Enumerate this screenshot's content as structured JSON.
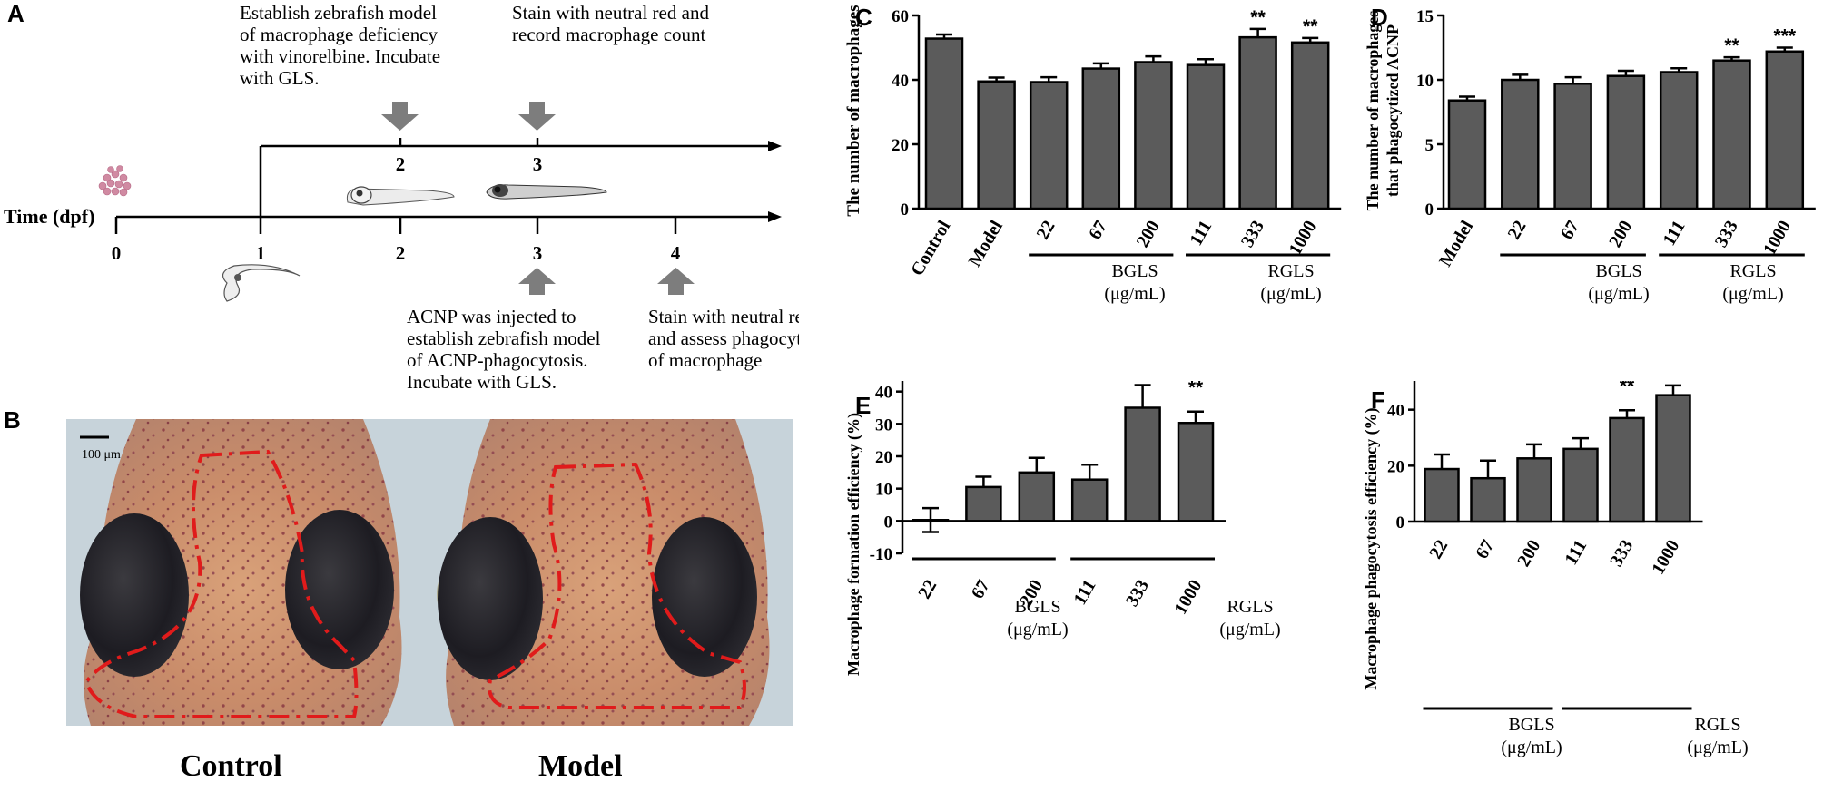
{
  "panels": {
    "A": "A",
    "B": "B",
    "C": "C",
    "D": "D",
    "E": "E",
    "F": "F"
  },
  "timeline": {
    "axis_label": "Time (dpf)",
    "ticks": [
      "0",
      "1",
      "2",
      "3",
      "4"
    ],
    "upper_ticks": [
      "2",
      "3"
    ],
    "top_notes": [
      [
        "Establish zebrafish model",
        "of macrophage deficiency",
        "with vinorelbine. Incubate",
        "with GLS."
      ],
      [
        "Stain with neutral red and",
        "record macrophage count"
      ]
    ],
    "bottom_notes": [
      [
        "ACNP was injected to",
        "establish zebrafish model",
        "of ACNP-phagocytosis.",
        "Incubate with GLS."
      ],
      [
        "Stain with neutral red",
        "and assess phagocytosis",
        "of macrophage"
      ]
    ]
  },
  "photos": {
    "scale_bar_label": "100 μm",
    "left_caption": "Control",
    "right_caption": "Model"
  },
  "groups": {
    "bgls_label": "BGLS",
    "rgls_label": "RGLS",
    "unit": "(μg/mL)"
  },
  "chart_data": [
    {
      "panel": "C",
      "type": "bar",
      "categories": [
        "Control",
        "Model",
        "22",
        "67",
        "200",
        "111",
        "333",
        "1000"
      ],
      "values": [
        52.8,
        39.5,
        39.3,
        43.5,
        45.5,
        44.6,
        53.2,
        51.6
      ],
      "errors": [
        1.3,
        1.2,
        1.5,
        1.6,
        1.8,
        1.8,
        2.6,
        1.4
      ],
      "significance": [
        "",
        "",
        "",
        "",
        "",
        "",
        "**",
        "**"
      ],
      "ylabel": "The number of macrophages",
      "ylim": [
        0,
        60
      ],
      "yticks": [
        0,
        20,
        40,
        60
      ],
      "bar_color": "#5b5b5b"
    },
    {
      "panel": "D",
      "type": "bar",
      "categories": [
        "Model",
        "22",
        "67",
        "200",
        "111",
        "333",
        "1000"
      ],
      "values": [
        8.4,
        10.0,
        9.7,
        10.3,
        10.6,
        11.5,
        12.2
      ],
      "errors": [
        0.3,
        0.4,
        0.5,
        0.4,
        0.3,
        0.25,
        0.3
      ],
      "significance": [
        "",
        "",
        "",
        "",
        "",
        "**",
        "***"
      ],
      "ylabel": "The number of macrophages that phagocytized ACNP",
      "ylim": [
        0,
        15
      ],
      "yticks": [
        0,
        5,
        10,
        15
      ],
      "bar_color": "#5b5b5b"
    },
    {
      "panel": "E",
      "type": "bar",
      "categories": [
        "22",
        "67",
        "200",
        "111",
        "333",
        "1000"
      ],
      "values": [
        0.3,
        10.5,
        15.0,
        12.8,
        35.0,
        30.3
      ],
      "errors": [
        3.7,
        3.2,
        4.5,
        4.6,
        7.0,
        3.5
      ],
      "significance": [
        "",
        "",
        "",
        "",
        "**",
        "**"
      ],
      "ylabel": "Macrophage formation efficiency (%)",
      "ylim": [
        -10,
        50
      ],
      "yticks": [
        -10,
        0,
        10,
        20,
        30,
        40,
        50
      ],
      "bar_color": "#5b5b5b"
    },
    {
      "panel": "F",
      "type": "bar",
      "categories": [
        "22",
        "67",
        "200",
        "111",
        "333",
        "1000"
      ],
      "values": [
        18.8,
        15.5,
        22.6,
        26.0,
        37.0,
        45.2
      ],
      "errors": [
        5.2,
        6.3,
        5.0,
        3.8,
        2.8,
        3.5
      ],
      "significance": [
        "",
        "",
        "",
        "",
        "**",
        "***"
      ],
      "ylabel": "Macrophage phagocytosis efficiency (%)",
      "ylim": [
        0,
        60
      ],
      "yticks": [
        0,
        20,
        40,
        60
      ],
      "bar_color": "#5b5b5b"
    }
  ]
}
